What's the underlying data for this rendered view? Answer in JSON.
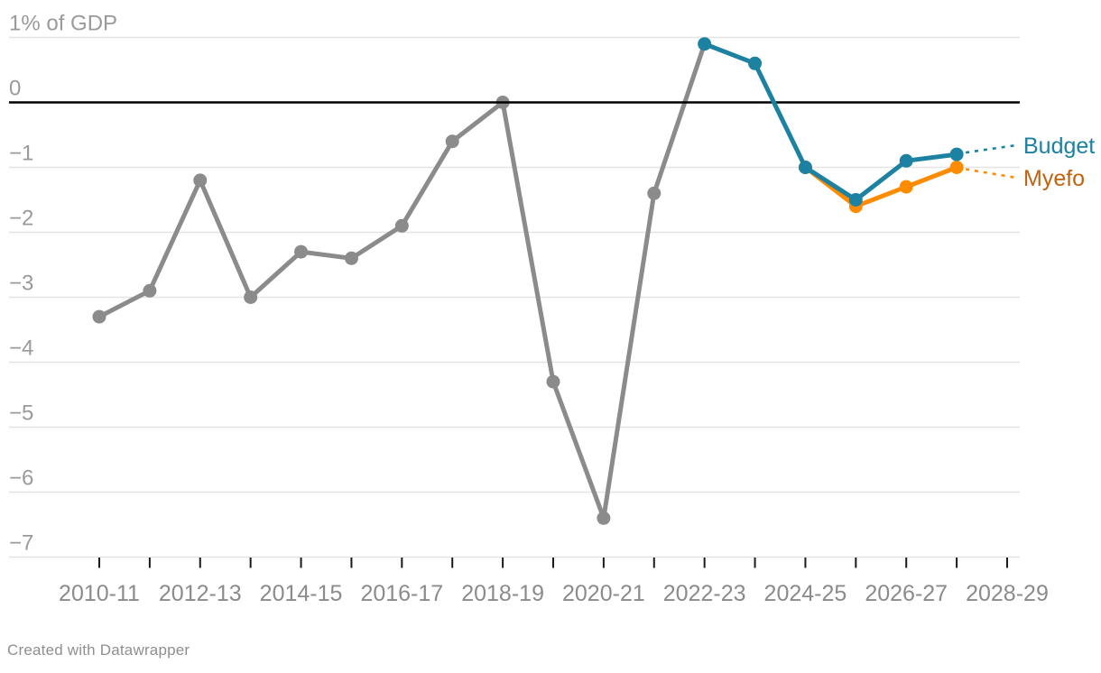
{
  "chart_data": {
    "type": "line",
    "title": "",
    "unit_label": "% of GDP",
    "y_axis": {
      "tick_values": [
        1,
        0,
        -1,
        -2,
        -3,
        -4,
        -5,
        -6,
        -7
      ],
      "tick_labels": [
        "1% of GDP",
        "0",
        "−1",
        "−2",
        "−3",
        "−4",
        "−5",
        "−6",
        "−7"
      ],
      "range": [
        -7,
        1
      ],
      "grid": true,
      "zero_line": true
    },
    "x_axis": {
      "categories": [
        "2010-11",
        "2011-12",
        "2012-13",
        "2013-14",
        "2014-15",
        "2015-16",
        "2016-17",
        "2017-18",
        "2018-19",
        "2019-20",
        "2020-21",
        "2021-22",
        "2022-23",
        "2023-24",
        "2024-25",
        "2025-26",
        "2026-27",
        "2027-28",
        "2028-29"
      ],
      "tick_labels": [
        "2010-11",
        "2012-13",
        "2014-15",
        "2016-17",
        "2018-19",
        "2020-21",
        "2022-23",
        "2024-25",
        "2026-27",
        "2028-29"
      ],
      "label_every": 2
    },
    "series": [
      {
        "id": "history",
        "name": "",
        "color": "#8b8b8b",
        "start_index": 0,
        "values": [
          -3.3,
          -2.9,
          -1.2,
          -3.0,
          -2.3,
          -2.4,
          -1.9,
          -0.6,
          0.0,
          -4.3,
          -6.4,
          -1.4,
          0.9
        ],
        "dot_last_index": 11
      },
      {
        "id": "budget",
        "name": "Budget",
        "color": "#1d81a2",
        "label_color": "#1d81a2",
        "start_index": 12,
        "values": [
          0.9,
          0.6,
          -1.0,
          -1.5,
          -0.9,
          -0.8
        ]
      },
      {
        "id": "myefo",
        "name": "Myefo",
        "color": "#ff8c00",
        "label_color": "#c2610e",
        "start_index": 14,
        "values": [
          -1.0,
          -1.6,
          -1.3,
          -1.0
        ]
      }
    ],
    "legend_position": "right-direct-labels",
    "colors": {
      "grid": "#e4e4e4",
      "zero_line": "#000000",
      "tick": "#1a1a1a",
      "y_label": "#9a9a9a",
      "x_label": "#8b8b8b"
    }
  },
  "footer": {
    "attribution": "Created with Datawrapper"
  }
}
